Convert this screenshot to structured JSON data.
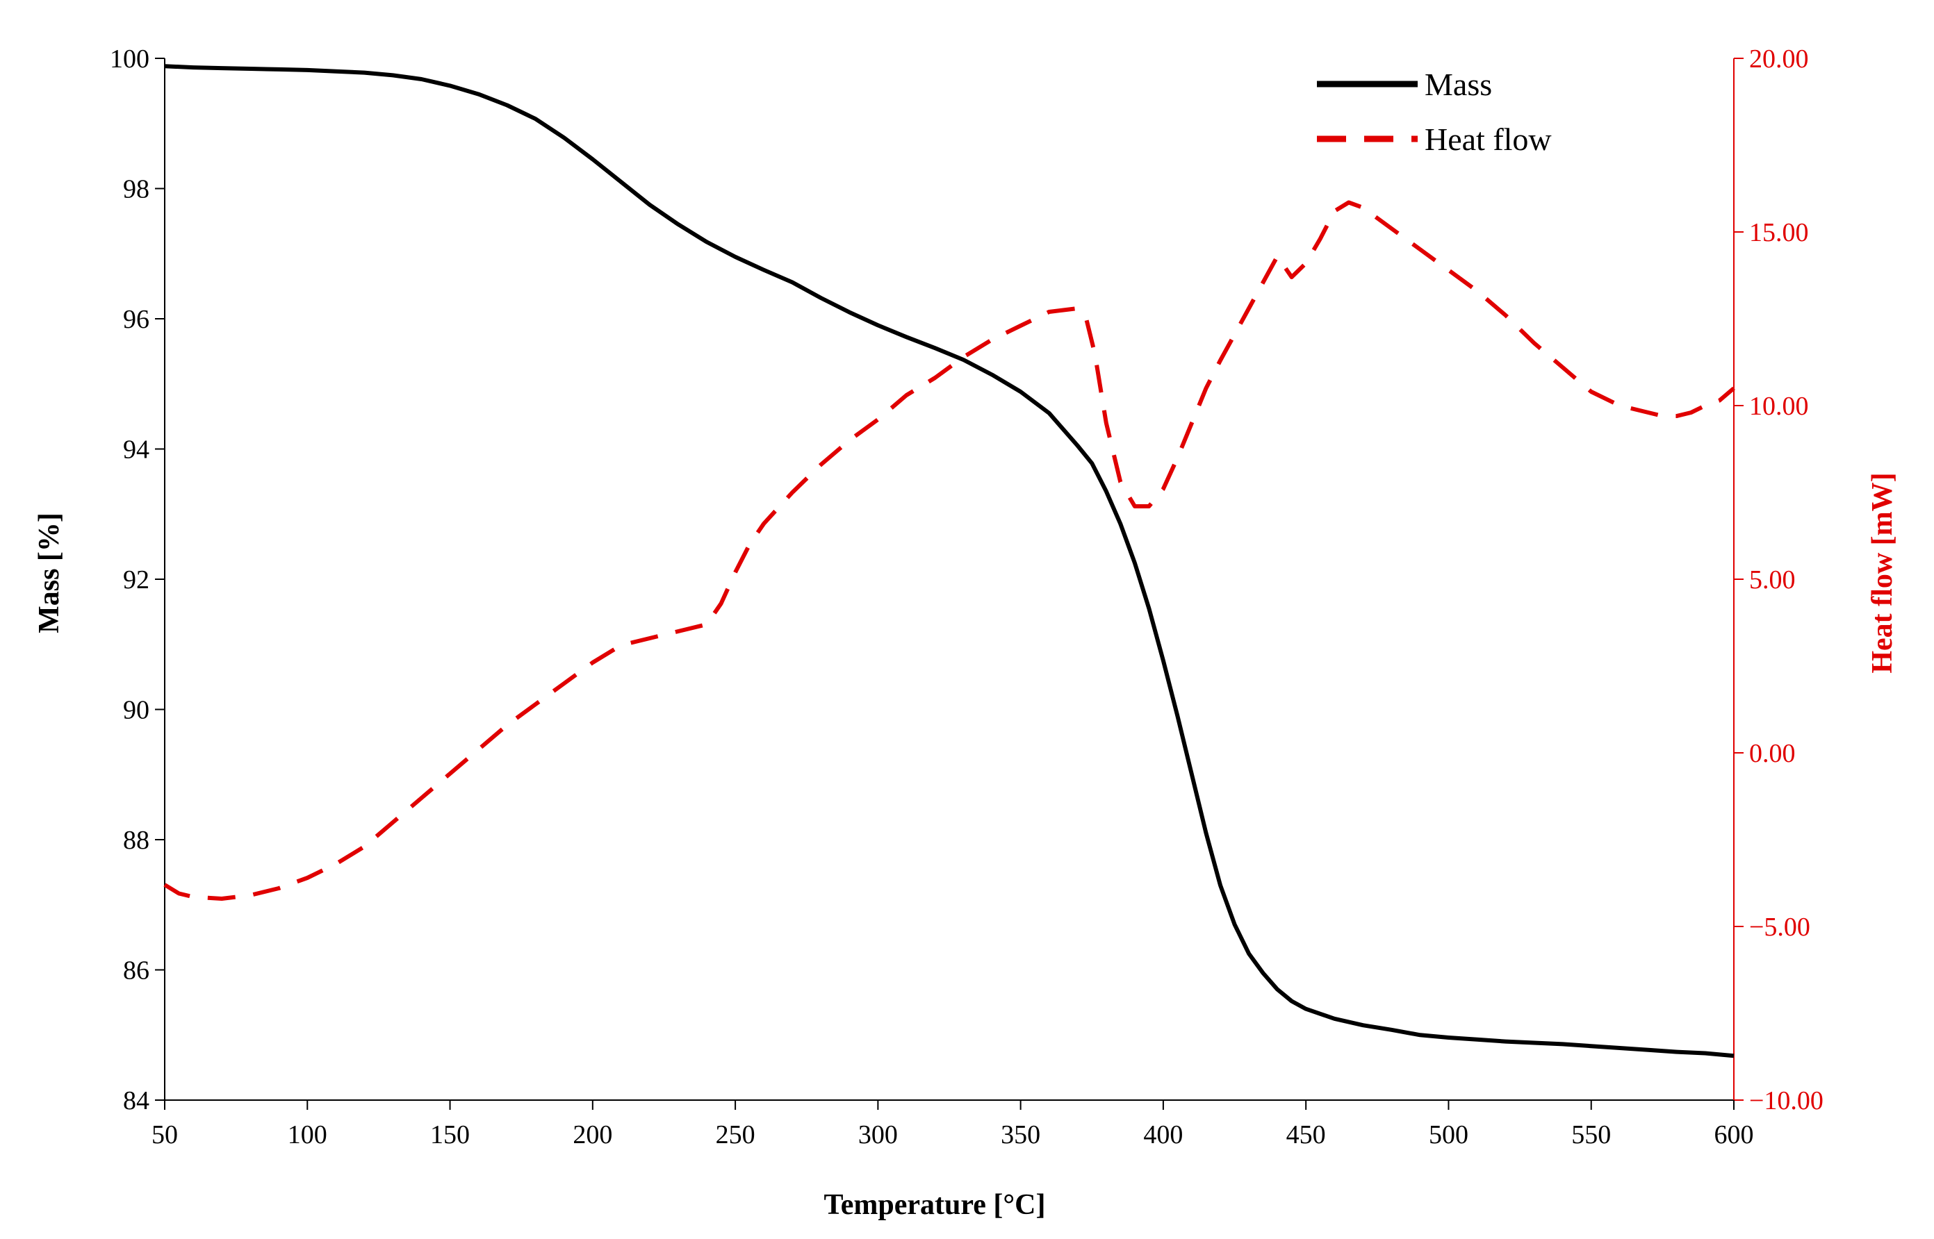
{
  "chart_data": {
    "type": "line",
    "title": "",
    "xlabel": "Temperature [°C]",
    "ylabel": "Mass [%]",
    "y2label": "Heat flow [mW]",
    "xlim": [
      50,
      600
    ],
    "ylim": [
      84,
      100
    ],
    "y2lim": [
      -10,
      20
    ],
    "xticks": [
      "50",
      "100",
      "150",
      "200",
      "250",
      "300",
      "350",
      "400",
      "450",
      "500",
      "550",
      "600"
    ],
    "yticks": [
      "84",
      "86",
      "88",
      "90",
      "92",
      "94",
      "96",
      "98",
      "100"
    ],
    "y2ticks": [
      "-10.00",
      "-5.00",
      "0.00",
      "5.00",
      "10.00",
      "15.00",
      "20.00"
    ],
    "grid": false,
    "legend_position": "top-right",
    "colors": {
      "mass": "#000000",
      "heat_flow": "#e00000"
    },
    "series": [
      {
        "name": "Mass",
        "axis": "left",
        "style": "solid",
        "x": [
          50,
          60,
          70,
          80,
          90,
          100,
          110,
          120,
          130,
          140,
          150,
          160,
          170,
          180,
          190,
          200,
          210,
          220,
          230,
          240,
          250,
          260,
          270,
          280,
          290,
          300,
          310,
          320,
          330,
          340,
          350,
          360,
          370,
          375,
          380,
          385,
          390,
          395,
          400,
          405,
          410,
          415,
          420,
          425,
          430,
          435,
          440,
          445,
          450,
          460,
          470,
          480,
          490,
          500,
          510,
          520,
          530,
          540,
          550,
          560,
          570,
          580,
          590,
          600
        ],
        "values": [
          99.88,
          99.86,
          99.85,
          99.84,
          99.83,
          99.82,
          99.8,
          99.78,
          99.74,
          99.68,
          99.58,
          99.45,
          99.28,
          99.07,
          98.78,
          98.45,
          98.1,
          97.75,
          97.45,
          97.18,
          96.95,
          96.75,
          96.56,
          96.32,
          96.1,
          95.9,
          95.72,
          95.55,
          95.37,
          95.14,
          94.88,
          94.55,
          94.05,
          93.78,
          93.35,
          92.85,
          92.25,
          91.55,
          90.75,
          89.9,
          89.0,
          88.1,
          87.3,
          86.7,
          86.25,
          85.95,
          85.7,
          85.52,
          85.4,
          85.25,
          85.15,
          85.08,
          85.0,
          84.96,
          84.93,
          84.9,
          84.88,
          84.86,
          84.83,
          84.8,
          84.77,
          84.74,
          84.72,
          84.68
        ]
      },
      {
        "name": "Heat flow",
        "axis": "right",
        "style": "dashed",
        "x": [
          50,
          55,
          60,
          70,
          80,
          90,
          100,
          110,
          120,
          130,
          140,
          150,
          160,
          170,
          180,
          190,
          200,
          210,
          220,
          230,
          240,
          245,
          250,
          255,
          260,
          270,
          280,
          290,
          300,
          310,
          320,
          330,
          340,
          350,
          360,
          365,
          370,
          373,
          376,
          380,
          385,
          390,
          395,
          400,
          405,
          410,
          415,
          420,
          430,
          440,
          445,
          450,
          455,
          460,
          465,
          470,
          480,
          490,
          500,
          510,
          520,
          530,
          540,
          550,
          560,
          565,
          570,
          575,
          580,
          585,
          590,
          595,
          600
        ],
        "values": [
          -3.8,
          -4.05,
          -4.15,
          -4.2,
          -4.1,
          -3.9,
          -3.6,
          -3.2,
          -2.7,
          -2.0,
          -1.3,
          -0.6,
          0.1,
          0.8,
          1.4,
          2.0,
          2.6,
          3.1,
          3.3,
          3.5,
          3.7,
          4.3,
          5.2,
          6.0,
          6.6,
          7.5,
          8.3,
          9.0,
          9.6,
          10.3,
          10.8,
          11.4,
          11.9,
          12.3,
          12.7,
          12.75,
          12.8,
          12.5,
          11.5,
          9.5,
          7.8,
          7.1,
          7.1,
          7.6,
          8.5,
          9.5,
          10.5,
          11.3,
          12.8,
          14.3,
          13.7,
          14.1,
          14.8,
          15.6,
          15.85,
          15.7,
          15.1,
          14.5,
          13.9,
          13.3,
          12.6,
          11.8,
          11.1,
          10.4,
          10.0,
          9.9,
          9.8,
          9.7,
          9.7,
          9.8,
          10.0,
          10.15,
          10.5
        ]
      }
    ]
  }
}
